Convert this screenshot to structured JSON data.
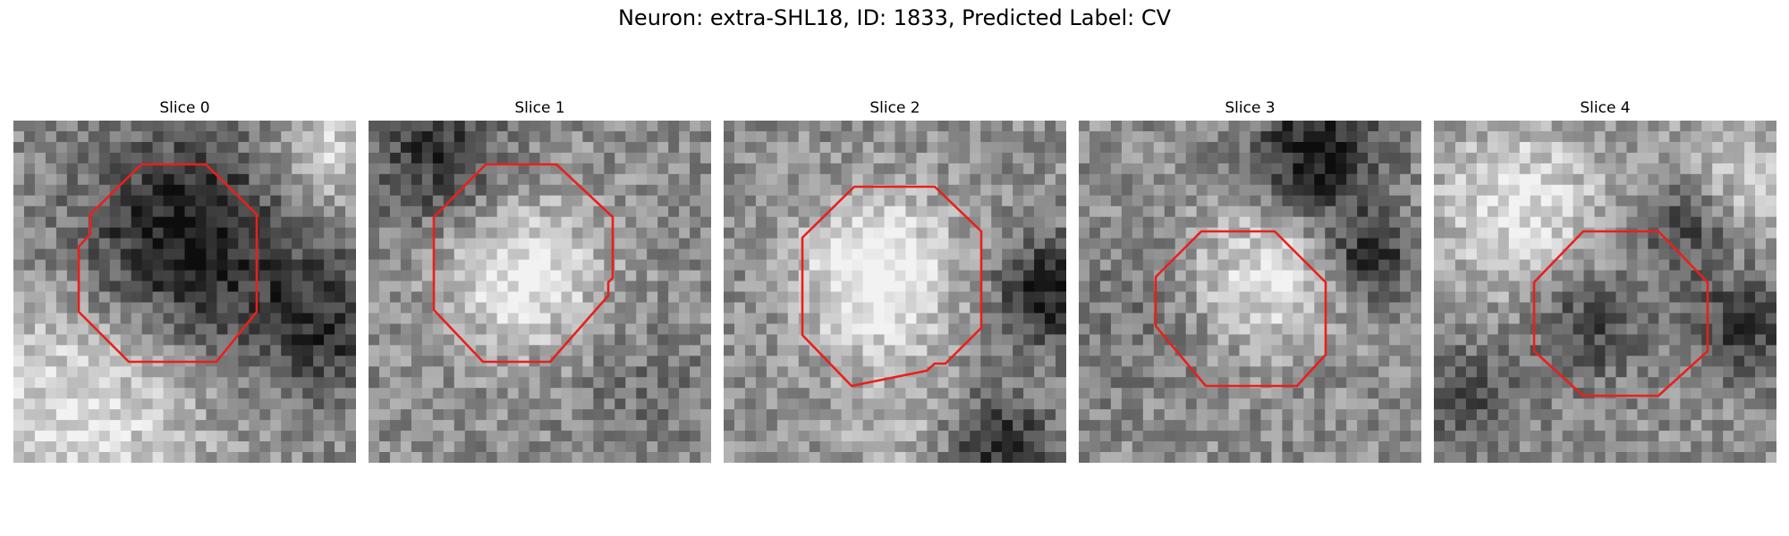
{
  "figure": {
    "title": "Neuron: extra-SHL18, ID: 1833, Predicted Label: CV",
    "colormap": "grayscale",
    "outline_color": "#e8201c"
  },
  "panels": [
    {
      "title": "Slice 0",
      "image_seed": 11,
      "blobs": [
        [
          0.5,
          0.35,
          0.3,
          -0.5
        ],
        [
          0.2,
          0.85,
          0.35,
          0.35
        ],
        [
          0.9,
          0.6,
          0.2,
          -0.35
        ],
        [
          0.9,
          0.1,
          0.15,
          0.3
        ]
      ]
    },
    {
      "title": "Slice 1",
      "image_seed": 23,
      "blobs": [
        [
          0.45,
          0.45,
          0.22,
          0.4
        ],
        [
          0.2,
          0.1,
          0.2,
          -0.35
        ],
        [
          0.8,
          0.8,
          0.2,
          -0.1
        ]
      ]
    },
    {
      "title": "Slice 2",
      "image_seed": 37,
      "blobs": [
        [
          0.45,
          0.45,
          0.22,
          0.5
        ],
        [
          0.95,
          0.5,
          0.15,
          -0.45
        ],
        [
          0.8,
          0.95,
          0.15,
          -0.4
        ],
        [
          0.5,
          0.9,
          0.2,
          0.15
        ]
      ]
    },
    {
      "title": "Slice 3",
      "image_seed": 41,
      "blobs": [
        [
          0.55,
          0.45,
          0.2,
          0.35
        ],
        [
          0.7,
          0.1,
          0.18,
          -0.5
        ],
        [
          0.85,
          0.4,
          0.12,
          -0.4
        ],
        [
          0.15,
          0.6,
          0.2,
          -0.1
        ]
      ]
    },
    {
      "title": "Slice 4",
      "image_seed": 53,
      "blobs": [
        [
          0.25,
          0.25,
          0.25,
          0.35
        ],
        [
          0.75,
          0.3,
          0.15,
          -0.4
        ],
        [
          0.9,
          0.6,
          0.15,
          -0.35
        ],
        [
          0.45,
          0.6,
          0.15,
          -0.3
        ],
        [
          0.1,
          0.8,
          0.15,
          -0.25
        ],
        [
          0.85,
          0.2,
          0.2,
          0.3
        ]
      ]
    }
  ]
}
